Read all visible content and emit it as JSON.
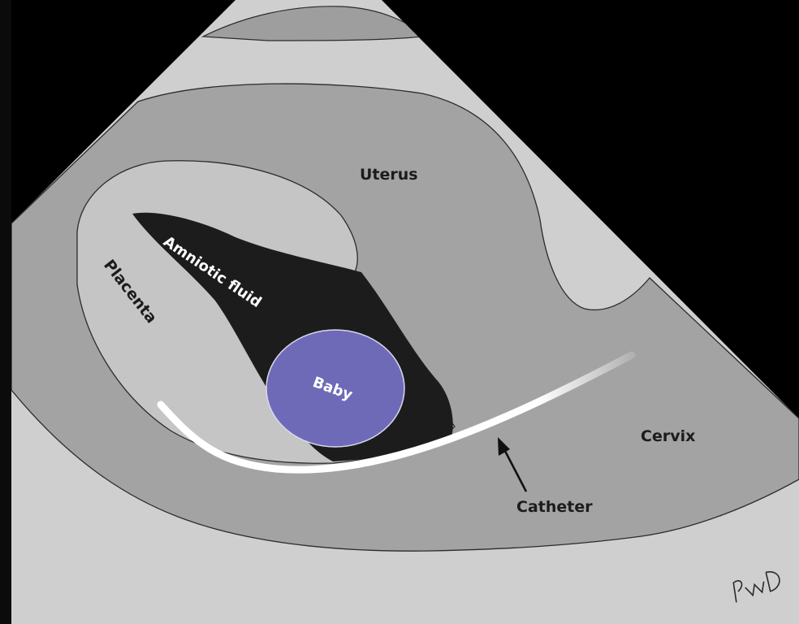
{
  "labels": {
    "uterus": "Uterus",
    "amniotic_fluid": "Amniotic fluid",
    "placenta": "Placenta",
    "baby": "Baby",
    "cervix": "Cervix",
    "catheter": "Catheter"
  },
  "signature": "PWD",
  "colors": {
    "background": "#000000",
    "sector_light": "#cfcfcf",
    "uterus_tissue": "#a3a3a3",
    "placenta": "#c5c5c5",
    "amniotic_fluid": "#1c1c1c",
    "baby": "#6f6ab8",
    "catheter": "#ffffff",
    "text_dark": "#1c1c1c",
    "text_light": "#ffffff"
  }
}
